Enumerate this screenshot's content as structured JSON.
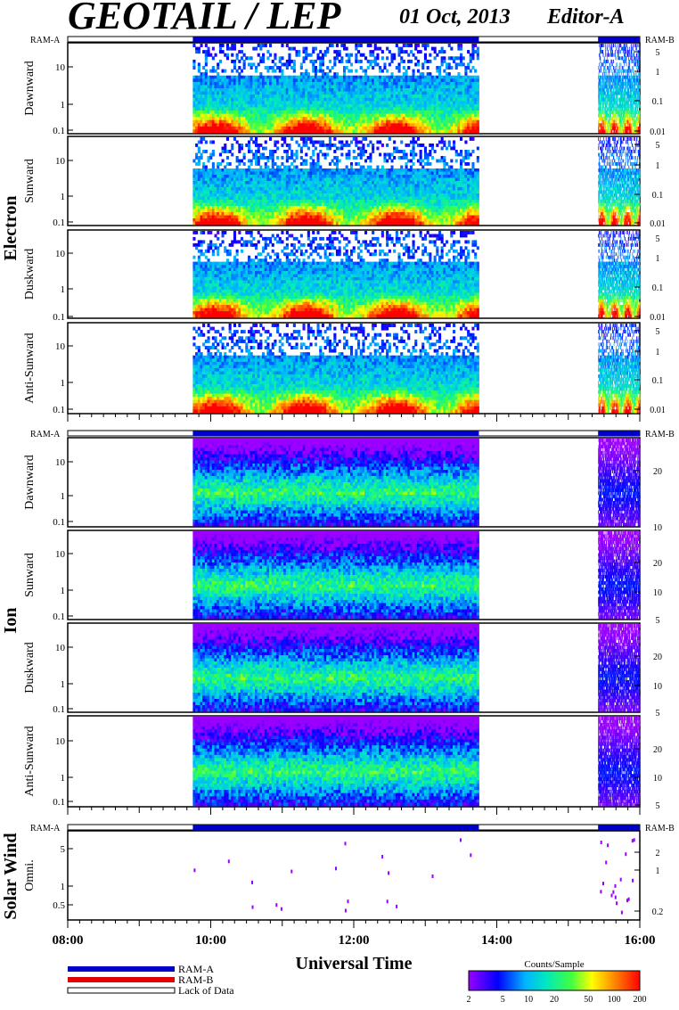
{
  "header": {
    "title": "GEOTAIL / LEP",
    "date": "01 Oct, 2013",
    "editor": "Editor-A"
  },
  "mode_labels": {
    "left": "RAM-A",
    "right": "RAM-B"
  },
  "groups": {
    "electron": "Electron",
    "ion": "Ion",
    "solar_wind": "Solar Wind"
  },
  "xaxis": {
    "label": "Universal Time",
    "ticks": [
      "08:00",
      "10:00",
      "12:00",
      "14:00",
      "16:00"
    ]
  },
  "legend": {
    "ram_a": "RAM-A",
    "ram_b": "RAM-B",
    "lack": "Lack of Data"
  },
  "colorbar": {
    "title": "Counts/Sample",
    "ticks": [
      "2",
      "5",
      "10",
      "20",
      "50",
      "100",
      "200"
    ]
  },
  "colors": {
    "ram_a": "#0000c8",
    "ram_b": "#e00000"
  },
  "chart_data": [
    {
      "type": "heatmap",
      "group": "Electron",
      "ylabel": "Dawnward",
      "yscale": "log",
      "left_ticks": [
        "10",
        "1",
        "0.1"
      ],
      "right_ticks": [
        "5",
        "1",
        "0.1",
        "0.01"
      ],
      "data_segments": [
        [
          "09:45",
          "13:45"
        ],
        [
          "15:25",
          "16:00"
        ]
      ]
    },
    {
      "type": "heatmap",
      "group": "Electron",
      "ylabel": "Sunward",
      "yscale": "log",
      "left_ticks": [
        "10",
        "1",
        "0.1"
      ],
      "right_ticks": [
        "5",
        "1",
        "0.1",
        "0.01"
      ],
      "data_segments": [
        [
          "09:45",
          "13:45"
        ],
        [
          "15:25",
          "16:00"
        ]
      ]
    },
    {
      "type": "heatmap",
      "group": "Electron",
      "ylabel": "Duskward",
      "yscale": "log",
      "left_ticks": [
        "10",
        "1",
        "0.1"
      ],
      "right_ticks": [
        "5",
        "1",
        "0.1",
        "0.01"
      ],
      "data_segments": [
        [
          "09:45",
          "13:45"
        ],
        [
          "15:25",
          "16:00"
        ]
      ]
    },
    {
      "type": "heatmap",
      "group": "Electron",
      "ylabel": "Anti-Sunward",
      "yscale": "log",
      "left_ticks": [
        "10",
        "1",
        "0.1"
      ],
      "right_ticks": [
        "5",
        "1",
        "0.1",
        "0.01"
      ],
      "data_segments": [
        [
          "09:45",
          "13:45"
        ],
        [
          "15:25",
          "16:00"
        ]
      ]
    },
    {
      "type": "heatmap",
      "group": "Ion",
      "ylabel": "Dawnward",
      "yscale": "log",
      "left_ticks": [
        "10",
        "1",
        "0.1"
      ],
      "right_ticks": [
        "20",
        "10",
        "5"
      ],
      "data_segments": [
        [
          "09:45",
          "13:45"
        ],
        [
          "15:25",
          "16:00"
        ]
      ]
    },
    {
      "type": "heatmap",
      "group": "Ion",
      "ylabel": "Sunward",
      "yscale": "log",
      "left_ticks": [
        "10",
        "1",
        "0.1"
      ],
      "right_ticks": [
        "20",
        "10",
        "5"
      ],
      "data_segments": [
        [
          "09:45",
          "13:45"
        ],
        [
          "15:25",
          "16:00"
        ]
      ]
    },
    {
      "type": "heatmap",
      "group": "Ion",
      "ylabel": "Duskward",
      "yscale": "log",
      "left_ticks": [
        "10",
        "1",
        "0.1"
      ],
      "right_ticks": [
        "20",
        "10",
        "5"
      ],
      "data_segments": [
        [
          "09:45",
          "13:45"
        ],
        [
          "15:25",
          "16:00"
        ]
      ]
    },
    {
      "type": "heatmap",
      "group": "Ion",
      "ylabel": "Anti-Sunward",
      "yscale": "log",
      "left_ticks": [
        "10",
        "1",
        "0.1"
      ],
      "right_ticks": [
        "20",
        "10",
        "5"
      ],
      "data_segments": [
        [
          "09:45",
          "13:45"
        ],
        [
          "15:25",
          "16:00"
        ]
      ]
    },
    {
      "type": "heatmap",
      "group": "Solar Wind",
      "ylabel": "Omni.",
      "yscale": "log",
      "left_ticks": [
        "5",
        "1",
        "0.5"
      ],
      "right_ticks": [
        "2",
        "1",
        "0.2"
      ],
      "data_segments": [
        [
          "09:45",
          "13:45"
        ],
        [
          "15:25",
          "16:00"
        ]
      ]
    }
  ]
}
